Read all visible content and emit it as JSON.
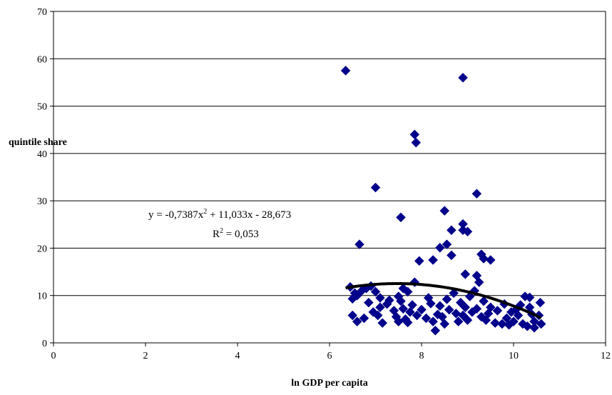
{
  "chart_data": {
    "type": "scatter",
    "xlabel": "ln GDP per capita",
    "ylabel": "quintile share",
    "xlim": [
      0,
      12
    ],
    "ylim": [
      0,
      70
    ],
    "x_ticks": [
      "0",
      "2",
      "4",
      "6",
      "8",
      "10",
      "12"
    ],
    "y_ticks": [
      "0",
      "10",
      "20",
      "30",
      "40",
      "50",
      "60",
      "70"
    ],
    "grid": "horizontal",
    "legend": "none",
    "colors": {
      "points": "#00008b",
      "trendline": "#000000",
      "gridlines": "#000000"
    },
    "trendline": {
      "type": "polynomial",
      "order": 2,
      "coefficients": [
        -0.7387,
        11.033,
        -28.673
      ],
      "x_range": [
        6.35,
        10.6
      ],
      "equation_main": "y = -0,7387x",
      "equation_sup": "2",
      "equation_rest": " + 11,033x - 28,673",
      "r2_main": "R",
      "r2_sup": "2",
      "r2_rest": " = 0,053"
    },
    "series": [
      {
        "points": [
          [
            6.35,
            57.5
          ],
          [
            8.9,
            56.0
          ],
          [
            7.85,
            44.0
          ],
          [
            7.88,
            42.3
          ],
          [
            7.0,
            32.8
          ],
          [
            9.2,
            31.5
          ],
          [
            8.5,
            27.9
          ],
          [
            7.55,
            26.5
          ],
          [
            8.9,
            25.1
          ],
          [
            8.9,
            23.8
          ],
          [
            9.0,
            23.5
          ],
          [
            8.65,
            23.8
          ],
          [
            6.65,
            20.8
          ],
          [
            8.55,
            20.8
          ],
          [
            8.4,
            20.1
          ],
          [
            8.25,
            17.5
          ],
          [
            8.65,
            18.5
          ],
          [
            9.3,
            18.7
          ],
          [
            9.35,
            17.8
          ],
          [
            9.5,
            17.5
          ],
          [
            7.95,
            17.3
          ],
          [
            9.2,
            14.2
          ],
          [
            9.25,
            12.8
          ],
          [
            8.95,
            14.5
          ],
          [
            6.45,
            11.8
          ],
          [
            6.55,
            10.5
          ],
          [
            6.5,
            9.3
          ],
          [
            6.6,
            10.0
          ],
          [
            6.7,
            11.0
          ],
          [
            6.8,
            11.5
          ],
          [
            6.9,
            12.0
          ],
          [
            7.0,
            10.8
          ],
          [
            7.1,
            9.5
          ],
          [
            7.6,
            11.5
          ],
          [
            7.7,
            10.8
          ],
          [
            7.85,
            12.8
          ],
          [
            7.5,
            9.8
          ],
          [
            6.5,
            5.8
          ],
          [
            6.6,
            4.5
          ],
          [
            6.75,
            5.2
          ],
          [
            6.85,
            8.5
          ],
          [
            6.95,
            6.5
          ],
          [
            7.05,
            5.8
          ],
          [
            7.1,
            7.5
          ],
          [
            7.15,
            4.2
          ],
          [
            7.25,
            8.2
          ],
          [
            7.3,
            9.0
          ],
          [
            7.4,
            6.8
          ],
          [
            7.45,
            5.5
          ],
          [
            7.5,
            4.5
          ],
          [
            7.55,
            8.8
          ],
          [
            7.6,
            7.2
          ],
          [
            7.65,
            5.0
          ],
          [
            7.7,
            4.3
          ],
          [
            7.75,
            6.5
          ],
          [
            7.8,
            8.0
          ],
          [
            7.9,
            5.8
          ],
          [
            8.0,
            7.0
          ],
          [
            8.1,
            5.2
          ],
          [
            8.15,
            9.5
          ],
          [
            8.2,
            8.3
          ],
          [
            8.25,
            4.5
          ],
          [
            8.3,
            2.6
          ],
          [
            8.35,
            6.0
          ],
          [
            8.4,
            7.8
          ],
          [
            8.45,
            5.5
          ],
          [
            8.5,
            4.0
          ],
          [
            8.55,
            9.2
          ],
          [
            8.6,
            7.0
          ],
          [
            8.7,
            10.5
          ],
          [
            8.75,
            6.2
          ],
          [
            8.8,
            4.5
          ],
          [
            8.85,
            8.5
          ],
          [
            8.9,
            5.8
          ],
          [
            8.95,
            7.5
          ],
          [
            9.0,
            4.8
          ],
          [
            9.05,
            9.8
          ],
          [
            9.1,
            6.5
          ],
          [
            9.15,
            11.0
          ],
          [
            9.2,
            7.2
          ],
          [
            9.3,
            5.5
          ],
          [
            9.35,
            8.8
          ],
          [
            9.4,
            4.8
          ],
          [
            9.45,
            6.2
          ],
          [
            9.5,
            7.5
          ],
          [
            9.6,
            4.2
          ],
          [
            9.65,
            6.8
          ],
          [
            9.75,
            4.0
          ],
          [
            9.8,
            8.2
          ],
          [
            9.85,
            5.2
          ],
          [
            9.9,
            3.8
          ],
          [
            9.95,
            6.5
          ],
          [
            10.0,
            4.5
          ],
          [
            10.05,
            7.0
          ],
          [
            10.1,
            5.8
          ],
          [
            10.15,
            8.0
          ],
          [
            10.2,
            4.0
          ],
          [
            10.25,
            9.8
          ],
          [
            10.3,
            3.5
          ],
          [
            10.35,
            9.6
          ],
          [
            10.4,
            6.0
          ],
          [
            10.45,
            4.5
          ],
          [
            10.55,
            5.8
          ],
          [
            10.58,
            8.5
          ],
          [
            10.6,
            4.0
          ],
          [
            10.35,
            7.5
          ],
          [
            10.45,
            3.2
          ]
        ]
      }
    ]
  }
}
